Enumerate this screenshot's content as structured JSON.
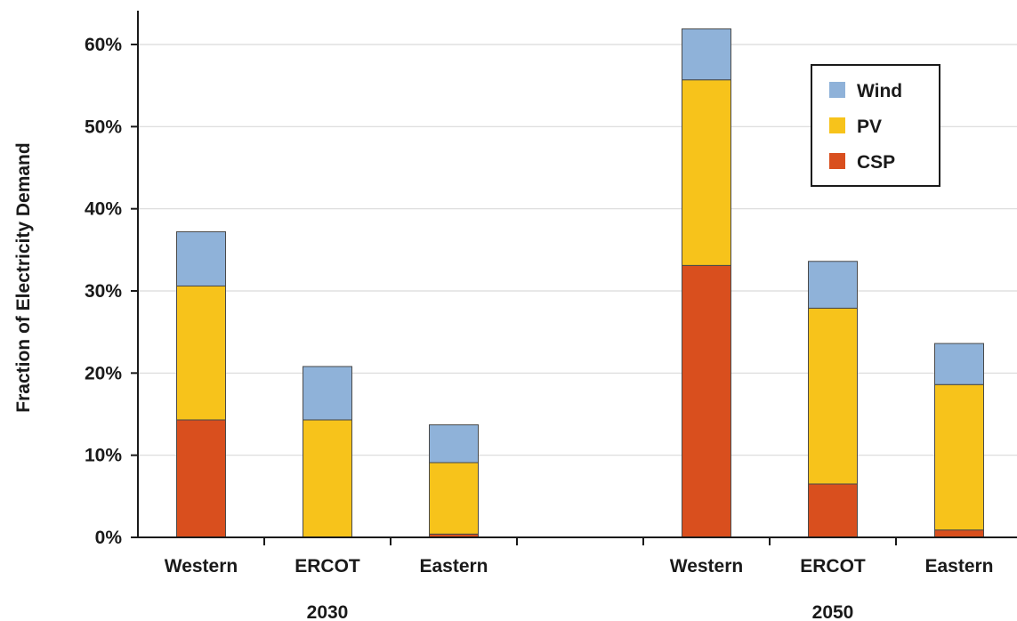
{
  "chart_data": {
    "type": "bar",
    "stacked": true,
    "ylabel": "Fraction of Electricity Demand",
    "ylim": [
      0,
      60
    ],
    "y_unit": "%",
    "yticks": [
      "0%",
      "10%",
      "20%",
      "30%",
      "40%",
      "50%",
      "60%"
    ],
    "grid": true,
    "legend_position": "top-right",
    "groups": [
      {
        "label": "2030",
        "categories": [
          "Western",
          "ERCOT",
          "Eastern"
        ]
      },
      {
        "label": "2050",
        "categories": [
          "Western",
          "ERCOT",
          "Eastern"
        ]
      }
    ],
    "series": [
      {
        "name": "CSP",
        "color": "#d94f1e",
        "values_2030": [
          14.3,
          0,
          0.4
        ],
        "values_2050": [
          33.1,
          6.5,
          0.9
        ]
      },
      {
        "name": "PV",
        "color": "#f7c31b",
        "values_2030": [
          16.3,
          14.3,
          8.7
        ],
        "values_2050": [
          22.6,
          21.4,
          17.7
        ]
      },
      {
        "name": "Wind",
        "color": "#8fb2d9",
        "values_2030": [
          6.6,
          6.5,
          4.6
        ],
        "values_2050": [
          6.2,
          5.7,
          5.0
        ]
      }
    ],
    "legend_order": [
      "Wind",
      "PV",
      "CSP"
    ]
  }
}
